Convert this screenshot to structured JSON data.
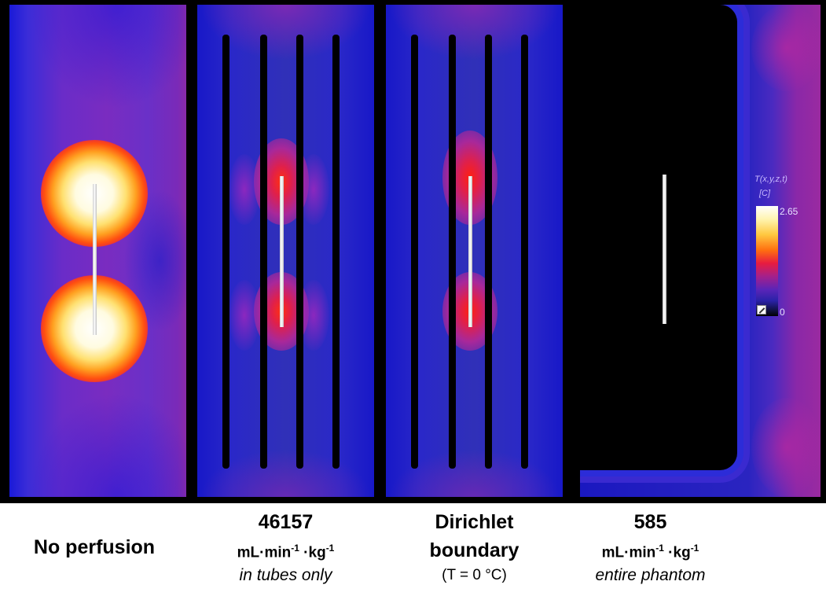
{
  "figure": {
    "panels": [
      {
        "id": "no-perfusion",
        "caption": {
          "title": "No perfusion"
        }
      },
      {
        "id": "tube-perfusion",
        "caption": {
          "value": "46157",
          "unit_base": "mL·min",
          "unit_exp1": "-1",
          "unit_mid": " ·kg",
          "unit_exp2": "-1",
          "note": "in tubes only"
        }
      },
      {
        "id": "dirichlet",
        "caption": {
          "line1": "Dirichlet",
          "line2": "boundary",
          "line3": "(T = 0 °C)"
        }
      },
      {
        "id": "phantom-perfusion",
        "caption": {
          "value": "585",
          "unit_base": "mL·min",
          "unit_exp1": "-1",
          "unit_mid": " ·kg",
          "unit_exp2": "-1",
          "note": "entire phantom"
        }
      }
    ],
    "legend": {
      "title": "T(x,y,z,t)",
      "unit": "[C]",
      "max": "2.65",
      "min": "0"
    }
  }
}
